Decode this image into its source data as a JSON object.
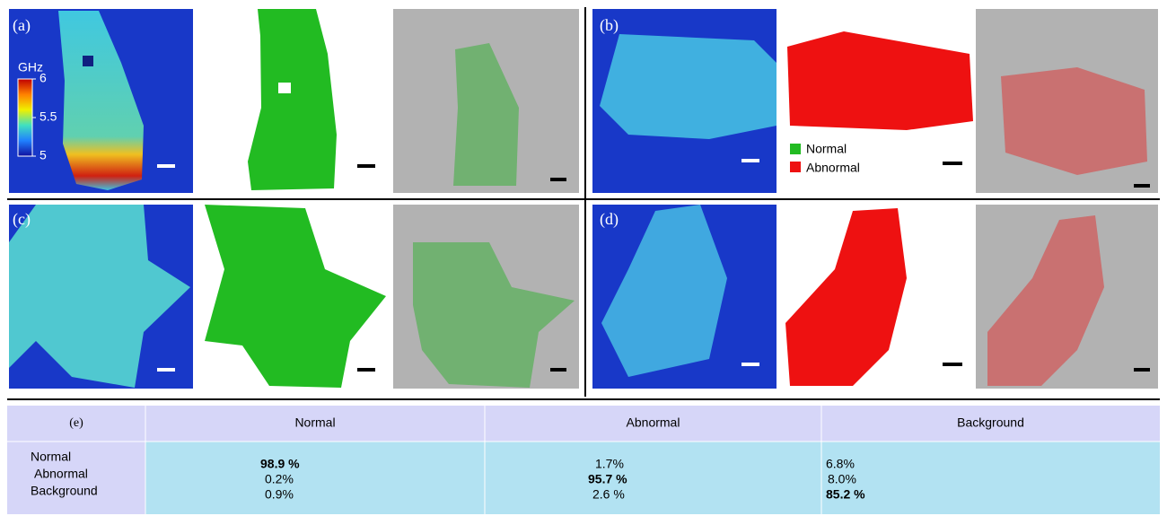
{
  "panels": {
    "a": "(a)",
    "b": "(b)",
    "c": "(c)",
    "d": "(d)"
  },
  "colorbar": {
    "label": "GHz",
    "range": [
      5,
      6
    ],
    "ticks": [
      6,
      5.5,
      5
    ]
  },
  "legend": {
    "normal": "Normal",
    "abnormal": "Abnormal"
  },
  "table": {
    "header": [
      "(e)",
      "Normal",
      "Abnormal",
      "Background"
    ],
    "rows": [
      {
        "label": "Normal",
        "cells": [
          {
            "text": "98.9 %",
            "bold": true
          },
          {
            "text": "1.7%"
          },
          {
            "text": "6.8%"
          }
        ]
      },
      {
        "label": "Abnormal",
        "cells": [
          {
            "text": "0.2%"
          },
          {
            "text": "95.7 %",
            "bold": true
          },
          {
            "text": "8.0%"
          }
        ]
      },
      {
        "label": "Background",
        "cells": [
          {
            "text": "0.9%"
          },
          {
            "text": "2.6 %"
          },
          {
            "text": "85.2 %",
            "bold": true
          }
        ]
      }
    ]
  }
}
